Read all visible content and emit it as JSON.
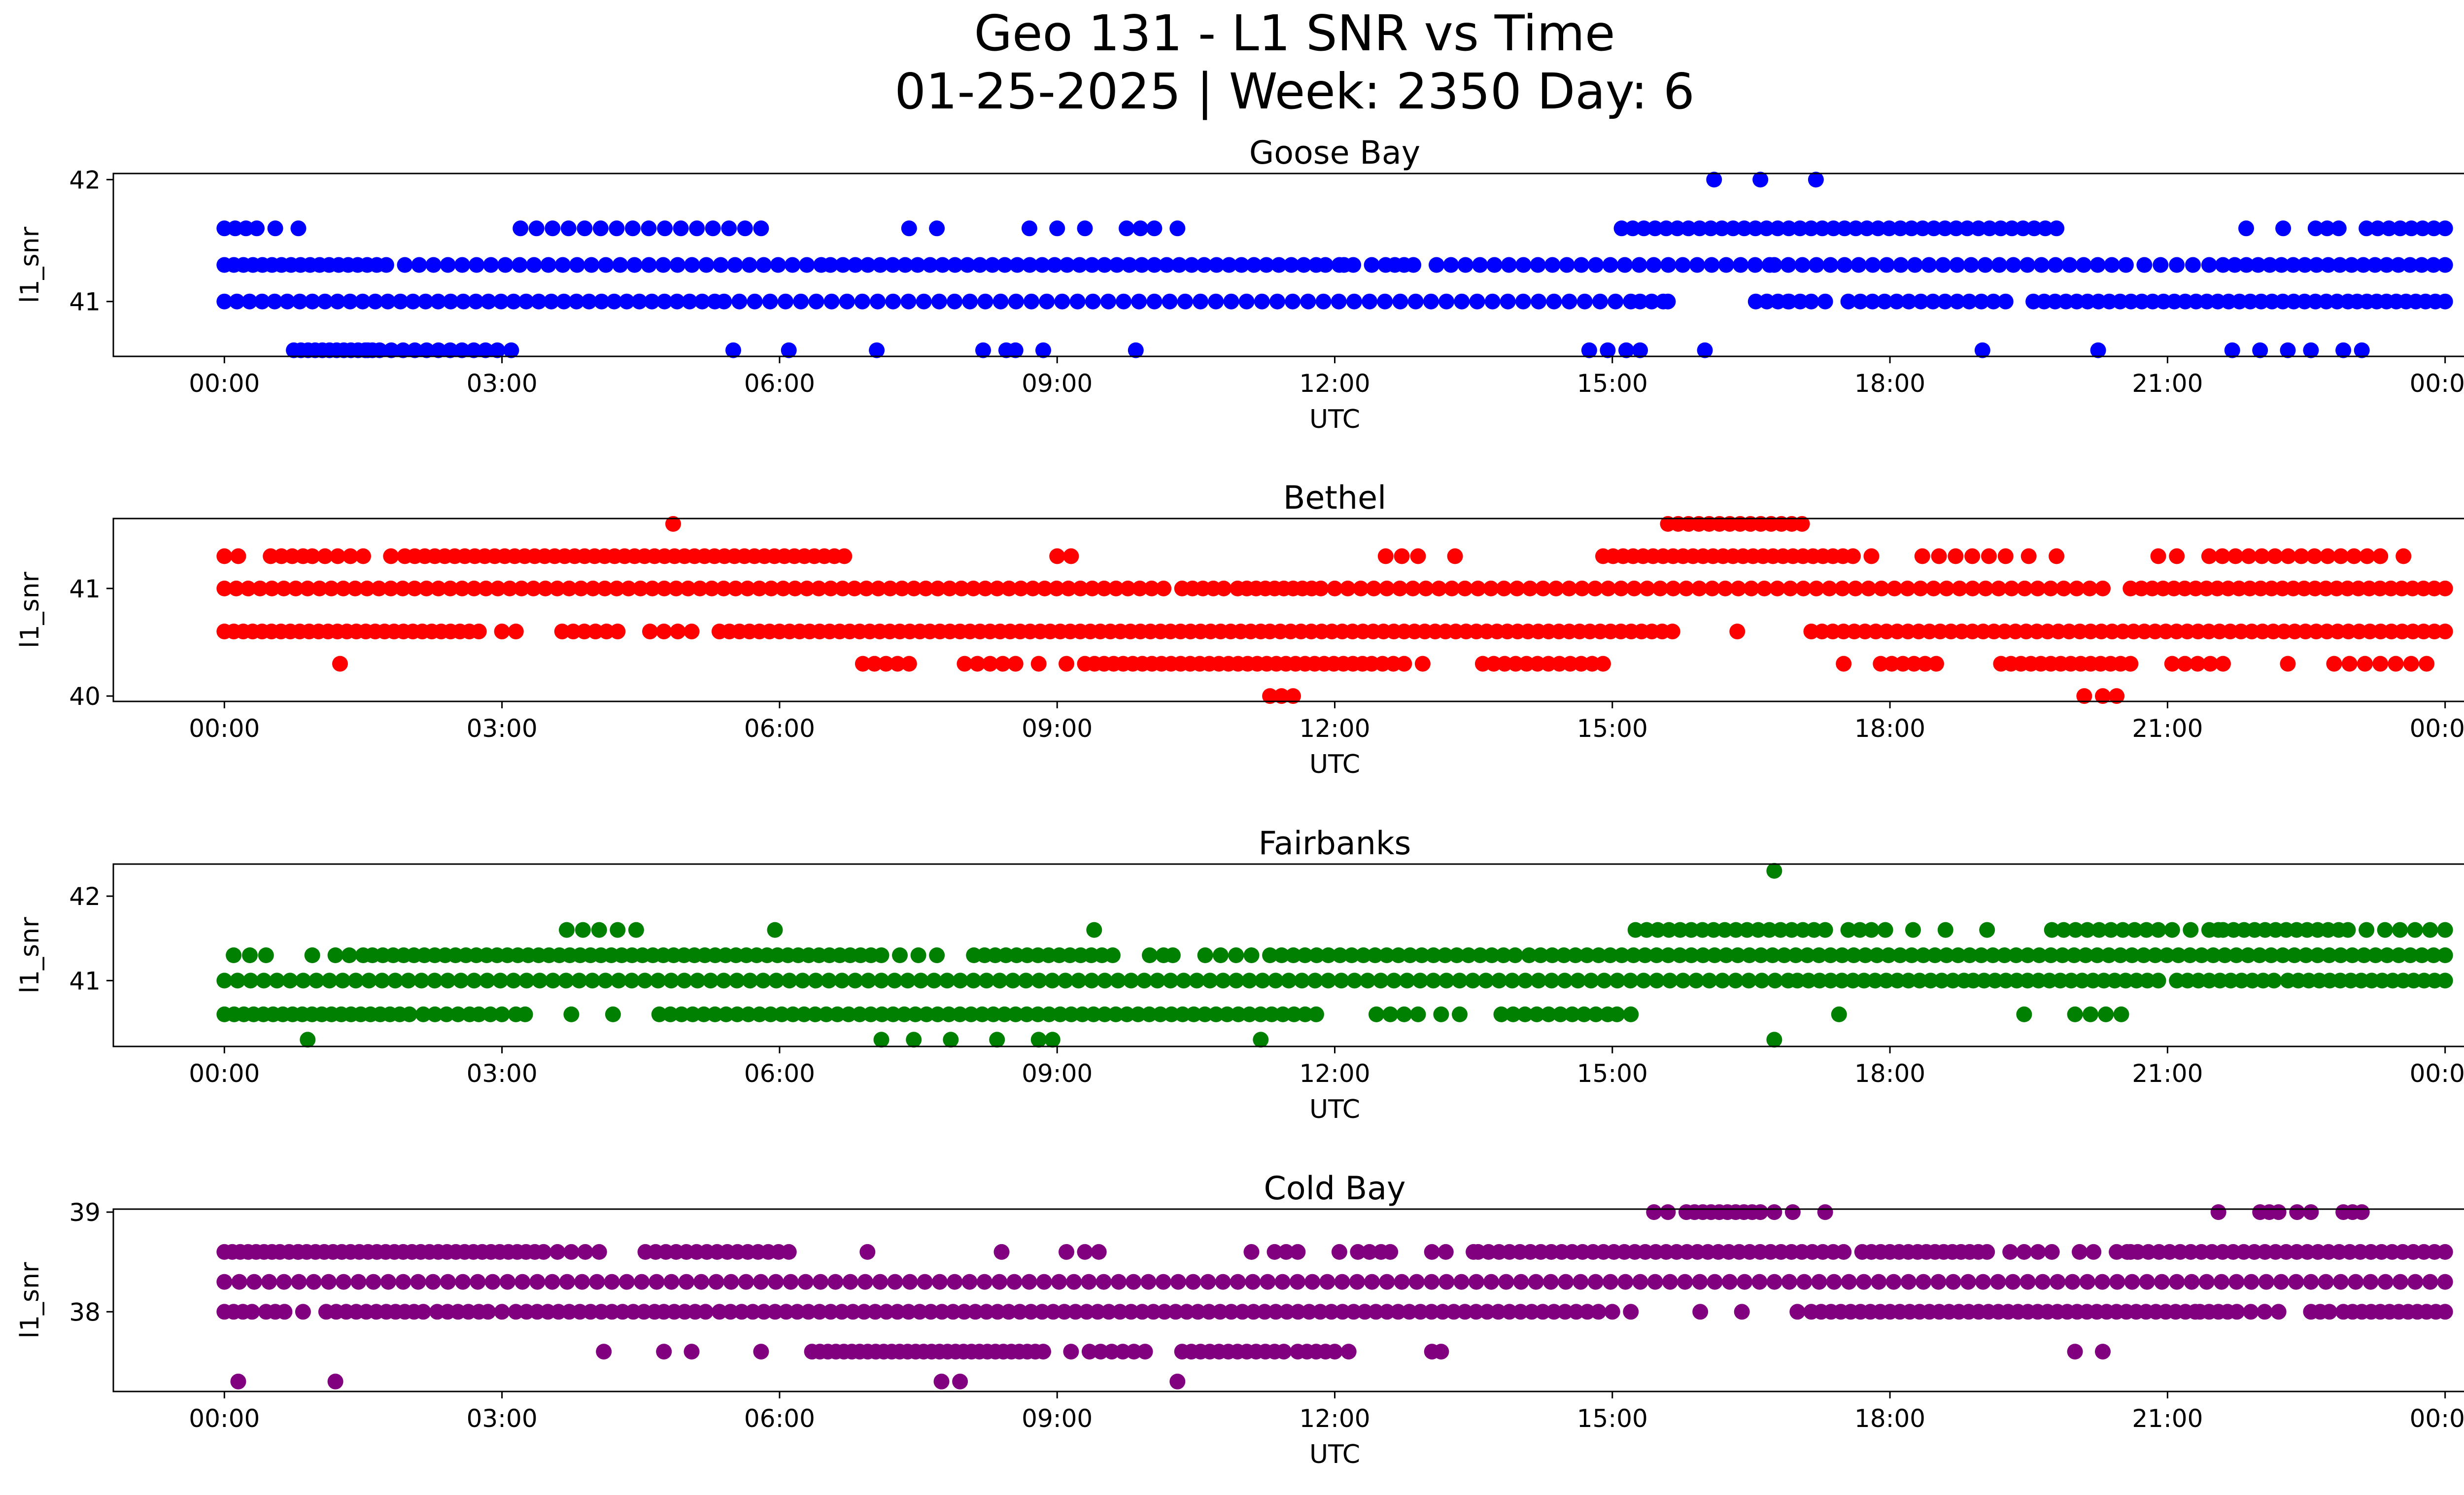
{
  "figure": {
    "title_line1": "Geo 131 - L1 SNR vs Time",
    "title_line2": "01-25-2025 | Week: 2350 Day: 6"
  },
  "chart_data": [
    {
      "type": "scatter",
      "title": "Goose Bay",
      "xlabel": "UTC",
      "ylabel": "l1_snr",
      "color": "#0000ff",
      "x_ticks": [
        "00:00",
        "03:00",
        "06:00",
        "09:00",
        "12:00",
        "15:00",
        "18:00",
        "21:00",
        "00:00"
      ],
      "y_ticks": [
        41,
        42
      ],
      "ylim": [
        40.55,
        42.05
      ],
      "xlim_hours": [
        -1.2,
        25.2
      ],
      "series": [
        {
          "y": 40.6,
          "segments": [
            [
              0.75,
              1.6,
              12
            ],
            [
              1.55,
              2.95,
              12
            ]
          ],
          "points": [
            3.1,
            5.5,
            6.1,
            7.05,
            8.2,
            8.45,
            8.55,
            8.85,
            9.85,
            14.75,
            14.95,
            15.15,
            15.3,
            16.0,
            19.0,
            20.25,
            21.7,
            22.0,
            22.3,
            22.55,
            22.9,
            23.1
          ]
        },
        {
          "y": 41.0,
          "segments": [
            [
              0.0,
              5.3,
              40
            ],
            [
              5.4,
              15.2,
              60
            ],
            [
              15.3,
              15.55,
              3
            ],
            [
              16.55,
              17.15,
              6
            ],
            [
              17.55,
              19.25,
              14
            ],
            [
              19.55,
              22.95,
              30
            ],
            [
              23.05,
              24.0,
              10
            ]
          ],
          "points": [
            15.6,
            16.9,
            17.3
          ]
        },
        {
          "y": 41.3,
          "segments": [
            [
              0.0,
              1.75,
              18
            ],
            [
              1.95,
              6.45,
              30
            ],
            [
              6.55,
              11.8,
              40
            ],
            [
              11.9,
              12.2,
              3
            ],
            [
              12.55,
              12.85,
              4
            ],
            [
              13.1,
              16.7,
              24
            ],
            [
              16.75,
              20.55,
              26
            ],
            [
              20.75,
              21.45,
              5
            ],
            [
              21.6,
              24.0,
              20
            ]
          ],
          "points": [
            12.1,
            12.4
          ]
        },
        {
          "y": 41.6,
          "segments": [
            [
              0.0,
              0.35,
              4
            ],
            [
              3.2,
              5.8,
              16
            ],
            [
              8.7,
              9.3,
              3
            ],
            [
              9.75,
              10.05,
              3
            ],
            [
              15.1,
              19.8,
              40
            ],
            [
              22.6,
              22.85,
              3
            ],
            [
              23.15,
              24.0,
              8
            ]
          ],
          "points": [
            0.55,
            0.8,
            7.4,
            7.7,
            10.3,
            21.85,
            22.25
          ]
        },
        {
          "y": 42.0,
          "segments": [],
          "points": [
            16.1,
            16.6,
            17.2
          ]
        }
      ]
    },
    {
      "type": "scatter",
      "title": "Bethel",
      "xlabel": "UTC",
      "ylabel": "l1_snr",
      "color": "#ff0000",
      "x_ticks": [
        "00:00",
        "03:00",
        "06:00",
        "09:00",
        "12:00",
        "15:00",
        "18:00",
        "21:00",
        "00:00"
      ],
      "y_ticks": [
        40,
        41
      ],
      "ylim": [
        39.95,
        41.65
      ],
      "xlim_hours": [
        -1.2,
        25.2
      ],
      "series": [
        {
          "y": 40.0,
          "segments": [
            [
              11.3,
              11.55,
              3
            ],
            [
              20.3,
              20.45,
              2
            ]
          ],
          "points": [
            20.1
          ]
        },
        {
          "y": 40.3,
          "segments": [
            [
              6.9,
              7.4,
              5
            ],
            [
              8.0,
              8.55,
              5
            ],
            [
              9.3,
              12.3,
              30
            ],
            [
              12.4,
              12.75,
              4
            ],
            [
              13.6,
              14.9,
              12
            ],
            [
              17.9,
              18.5,
              6
            ],
            [
              19.2,
              20.6,
              14
            ],
            [
              21.05,
              21.6,
              5
            ],
            [
              22.8,
              23.8,
              7
            ]
          ],
          "points": [
            1.25,
            8.8,
            9.1,
            12.95,
            17.5,
            22.3
          ]
        },
        {
          "y": 40.6,
          "segments": [
            [
              0.0,
              2.75,
              28
            ],
            [
              3.0,
              3.15,
              2
            ],
            [
              3.65,
              4.25,
              6
            ],
            [
              4.6,
              5.05,
              4
            ],
            [
              5.35,
              11.2,
              55
            ],
            [
              11.3,
              15.65,
              40
            ],
            [
              17.15,
              24.0,
              60
            ]
          ],
          "points": [
            16.35
          ]
        },
        {
          "y": 41.0,
          "segments": [
            [
              0.0,
              10.15,
              80
            ],
            [
              10.35,
              10.8,
              5
            ],
            [
              10.95,
              11.85,
              10
            ],
            [
              12.0,
              20.3,
              60
            ],
            [
              20.6,
              24.0,
              30
            ]
          ],
          "points": []
        },
        {
          "y": 41.3,
          "segments": [
            [
              0.0,
              0.15,
              2
            ],
            [
              0.5,
              0.85,
              4
            ],
            [
              0.95,
              1.5,
              5
            ],
            [
              1.95,
              6.7,
              45
            ],
            [
              9.0,
              9.15,
              2
            ],
            [
              12.55,
              12.9,
              3
            ],
            [
              14.9,
              17.6,
              26
            ],
            [
              18.35,
              19.25,
              6
            ],
            [
              21.45,
              23.3,
              14
            ]
          ],
          "points": [
            1.8,
            13.3,
            17.8,
            19.5,
            19.8,
            20.9,
            21.1,
            23.55
          ]
        },
        {
          "y": 41.6,
          "segments": [
            [
              15.6,
              17.05,
              14
            ]
          ],
          "points": [
            4.85
          ]
        }
      ]
    },
    {
      "type": "scatter",
      "title": "Fairbanks",
      "xlabel": "UTC",
      "ylabel": "l1_snr",
      "color": "#008000",
      "x_ticks": [
        "00:00",
        "03:00",
        "06:00",
        "09:00",
        "12:00",
        "15:00",
        "18:00",
        "21:00",
        "00:00"
      ],
      "y_ticks": [
        41,
        42
      ],
      "ylim": [
        40.22,
        42.38
      ],
      "xlim_hours": [
        -1.2,
        25.2
      ],
      "series": [
        {
          "y": 40.3,
          "segments": [
            [
              8.8,
              8.95,
              2
            ]
          ],
          "points": [
            0.9,
            7.1,
            7.45,
            7.85,
            8.35,
            11.2,
            16.75
          ]
        },
        {
          "y": 40.6,
          "segments": [
            [
              0.0,
              2.0,
              20
            ],
            [
              2.15,
              2.65,
              5
            ],
            [
              2.75,
              3.0,
              3
            ],
            [
              3.15,
              3.25,
              2
            ],
            [
              4.7,
              11.8,
              60
            ],
            [
              12.45,
              12.9,
              4
            ],
            [
              13.15,
              13.35,
              2
            ],
            [
              13.8,
              14.95,
              10
            ],
            [
              15.05,
              15.2,
              2
            ],
            [
              20.0,
              20.5,
              4
            ]
          ],
          "points": [
            3.75,
            4.2,
            17.45,
            19.45
          ]
        },
        {
          "y": 41.0,
          "segments": [
            [
              0.0,
              16.9,
              120
            ],
            [
              17.0,
              18.8,
              16
            ],
            [
              18.9,
              20.9,
              18
            ],
            [
              21.1,
              22.15,
              10
            ],
            [
              22.3,
              24.0,
              16
            ]
          ],
          "points": []
        },
        {
          "y": 41.3,
          "segments": [
            [
              0.1,
              0.45,
              3
            ],
            [
              1.2,
              1.5,
              3
            ],
            [
              1.6,
              7.1,
              50
            ],
            [
              7.5,
              7.7,
              2
            ],
            [
              8.1,
              9.6,
              14
            ],
            [
              10.0,
              10.15,
              2
            ],
            [
              10.6,
              11.1,
              4
            ],
            [
              11.3,
              13.95,
              22
            ],
            [
              14.1,
              24.0,
              80
            ]
          ],
          "points": [
            0.95,
            7.3,
            10.25
          ]
        },
        {
          "y": 41.6,
          "segments": [
            [
              3.7,
              4.05,
              3
            ],
            [
              4.25,
              4.45,
              2
            ],
            [
              15.25,
              17.3,
              18
            ],
            [
              17.55,
              17.8,
              3
            ],
            [
              19.75,
              20.9,
              10
            ],
            [
              21.05,
              21.45,
              3
            ],
            [
              21.6,
              22.85,
              12
            ],
            [
              23.35,
              24.0,
              5
            ]
          ],
          "points": [
            5.95,
            9.4,
            17.95,
            18.25,
            18.6,
            19.05,
            21.55,
            22.95,
            23.15
          ]
        },
        {
          "y": 42.3,
          "segments": [],
          "points": [
            16.75
          ]
        }
      ]
    },
    {
      "type": "scatter",
      "title": "Cold Bay",
      "xlabel": "UTC",
      "ylabel": "l1_snr",
      "color": "#800080",
      "x_ticks": [
        "00:00",
        "03:00",
        "06:00",
        "09:00",
        "12:00",
        "15:00",
        "18:00",
        "21:00",
        "00:00"
      ],
      "y_ticks": [
        38,
        39
      ],
      "ylim": [
        37.2,
        39.03
      ],
      "xlim_hours": [
        -1.2,
        25.2
      ],
      "series": [
        {
          "y": 37.3,
          "segments": [],
          "points": [
            0.15,
            1.2,
            7.75,
            7.95,
            10.3
          ]
        },
        {
          "y": 37.6,
          "segments": [
            [
              6.35,
              8.85,
              30
            ],
            [
              9.35,
              9.95,
              6
            ],
            [
              10.35,
              11.45,
              12
            ],
            [
              11.6,
              12.0,
              5
            ],
            [
              13.05,
              13.15,
              2
            ],
            [
              20.0,
              20.3,
              2
            ]
          ],
          "points": [
            4.1,
            4.75,
            5.05,
            5.8,
            9.15,
            12.15
          ]
        },
        {
          "y": 38.0,
          "segments": [
            [
              0.0,
              0.3,
              4
            ],
            [
              0.45,
              0.65,
              3
            ],
            [
              1.1,
              1.75,
              7
            ],
            [
              1.85,
              2.15,
              4
            ],
            [
              2.3,
              2.75,
              5
            ],
            [
              2.85,
              3.0,
              2
            ],
            [
              3.15,
              4.65,
              14
            ],
            [
              4.75,
              5.2,
              5
            ],
            [
              5.35,
              14.85,
              80
            ],
            [
              15.0,
              15.2,
              2
            ],
            [
              17.15,
              21.3,
              40
            ],
            [
              21.35,
              21.75,
              5
            ],
            [
              22.05,
              22.2,
              2
            ],
            [
              22.55,
              22.75,
              3
            ],
            [
              22.9,
              24.0,
              12
            ]
          ],
          "points": [
            0.85,
            15.95,
            16.4,
            17.0,
            21.9
          ]
        },
        {
          "y": 38.3,
          "segments": [
            [
              0.0,
              24.0,
              150
            ]
          ],
          "points": []
        },
        {
          "y": 38.6,
          "segments": [
            [
              0.0,
              0.6,
              8
            ],
            [
              0.7,
              3.45,
              30
            ],
            [
              3.6,
              3.9,
              3
            ],
            [
              4.55,
              6.1,
              15
            ],
            [
              9.1,
              9.3,
              2
            ],
            [
              11.35,
              11.6,
              3
            ],
            [
              12.25,
              12.5,
              3
            ],
            [
              13.05,
              13.2,
              2
            ],
            [
              13.55,
              17.5,
              36
            ],
            [
              17.7,
              18.2,
              6
            ],
            [
              18.3,
              19.05,
              9
            ],
            [
              19.45,
              19.75,
              3
            ],
            [
              20.05,
              20.2,
              2
            ],
            [
              20.45,
              24.0,
              32
            ]
          ],
          "points": [
            0.8,
            4.05,
            6.95,
            8.4,
            9.45,
            11.1,
            12.05,
            12.6,
            13.5,
            19.3,
            20.6
          ]
        },
        {
          "y": 39.0,
          "segments": [
            [
              15.45,
              15.6,
              2
            ],
            [
              15.8,
              16.6,
              10
            ],
            [
              16.75,
              16.95,
              2
            ],
            [
              22.4,
              22.55,
              2
            ],
            [
              22.9,
              23.1,
              3
            ]
          ],
          "points": [
            17.3,
            21.55,
            22.0,
            22.1,
            22.2
          ]
        }
      ]
    }
  ]
}
